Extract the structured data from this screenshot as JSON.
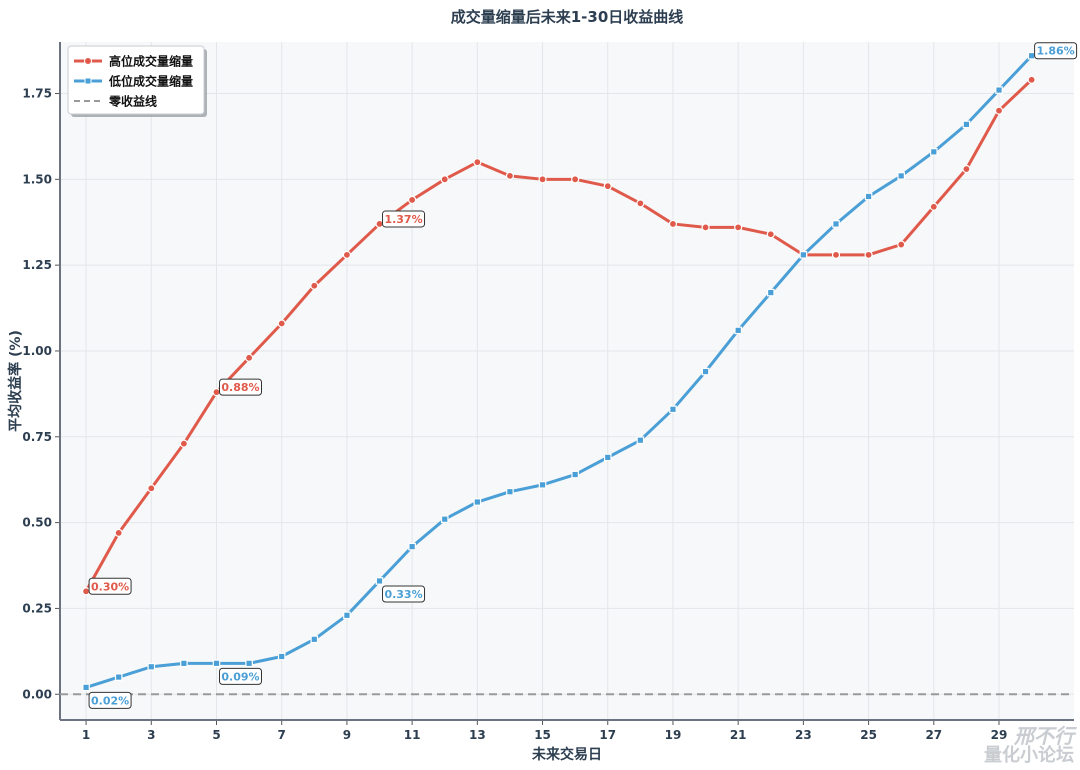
{
  "chart_data": {
    "type": "line",
    "title": "成交量缩量后未来1-30日收益曲线",
    "xlabel": "未来交易日",
    "ylabel": "平均收益率 (%)",
    "xlim": [
      0.2,
      31.3
    ],
    "ylim": [
      -0.075,
      1.9
    ],
    "xticks": [
      "1",
      "3",
      "5",
      "7",
      "9",
      "11",
      "13",
      "15",
      "17",
      "19",
      "21",
      "23",
      "25",
      "27",
      "29"
    ],
    "yticks": [
      "0.00",
      "0.25",
      "0.50",
      "0.75",
      "1.00",
      "1.25",
      "1.50",
      "1.75"
    ],
    "grid": true,
    "legend_position": "top-left",
    "x": [
      1,
      2,
      3,
      4,
      5,
      6,
      7,
      8,
      9,
      10,
      11,
      12,
      13,
      14,
      15,
      16,
      17,
      18,
      19,
      20,
      21,
      22,
      23,
      24,
      25,
      26,
      27,
      28,
      29,
      30
    ],
    "series": [
      {
        "name": "高位成交量缩量",
        "color": "#e05a4b",
        "marker": "circle",
        "values": [
          0.3,
          0.47,
          0.6,
          0.73,
          0.88,
          0.98,
          1.08,
          1.19,
          1.28,
          1.37,
          1.44,
          1.5,
          1.55,
          1.51,
          1.5,
          1.5,
          1.48,
          1.43,
          1.37,
          1.36,
          1.36,
          1.34,
          1.28,
          1.28,
          1.28,
          1.31,
          1.42,
          1.53,
          1.7,
          1.79
        ]
      },
      {
        "name": "低位成交量缩量",
        "color": "#4a9fd6",
        "marker": "square",
        "values": [
          0.02,
          0.05,
          0.08,
          0.09,
          0.09,
          0.09,
          0.11,
          0.16,
          0.23,
          0.33,
          0.43,
          0.51,
          0.56,
          0.59,
          0.61,
          0.64,
          0.69,
          0.74,
          0.83,
          0.94,
          1.06,
          1.17,
          1.28,
          1.37,
          1.45,
          1.51,
          1.58,
          1.66,
          1.76,
          1.86
        ]
      }
    ],
    "reference_line": {
      "name": "零收益线",
      "y": 0,
      "color": "#9a9a9a",
      "style": "dashed"
    },
    "annotations": [
      {
        "series": 0,
        "x": 1,
        "text": "0.30%",
        "placement": "above"
      },
      {
        "series": 0,
        "x": 5,
        "text": "0.88%",
        "placement": "above"
      },
      {
        "series": 0,
        "x": 10,
        "text": "1.37%",
        "placement": "above"
      },
      {
        "series": 1,
        "x": 1,
        "text": "0.02%",
        "placement": "below"
      },
      {
        "series": 1,
        "x": 5,
        "text": "0.09%",
        "placement": "below"
      },
      {
        "series": 1,
        "x": 10,
        "text": "0.33%",
        "placement": "below"
      },
      {
        "series": 1,
        "x": 30,
        "text": "1.86%",
        "placement": "above"
      }
    ]
  },
  "watermark": {
    "line1": "邢不行",
    "line2": "量化小论坛"
  }
}
